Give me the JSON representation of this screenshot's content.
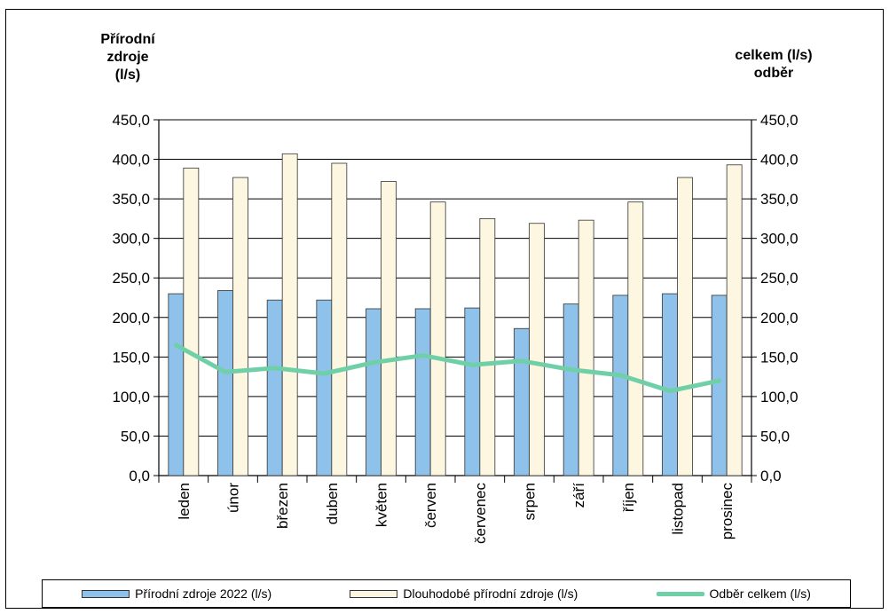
{
  "colors": {
    "primary_bar": "#8ec2ea",
    "secondary_bar": "#fdf6e0",
    "line": "#6fd0a8",
    "axis": "#000000"
  },
  "axes": {
    "left_title": [
      "Přírodní",
      "zdroje",
      "(l/s)"
    ],
    "right_title": [
      "celkem (l/s)",
      "odběr"
    ]
  },
  "legend": {
    "primary": "Přírodní zdroje 2022 (l/s)",
    "secondary": "Dlouhodobé přírodní zdroje (l/s)",
    "line": "Odběr celkem (l/s)"
  },
  "chart_data": {
    "type": "bar",
    "categories": [
      "leden",
      "únor",
      "březen",
      "duben",
      "květen",
      "červen",
      "červenec",
      "srpen",
      "září",
      "říjen",
      "listopad",
      "prosinec"
    ],
    "series": [
      {
        "name": "Přírodní zdroje 2022 (l/s)",
        "type": "bar",
        "values": [
          230,
          234,
          222,
          222,
          211,
          211,
          212,
          186,
          217,
          228,
          230,
          228
        ]
      },
      {
        "name": "Dlouhodobé přírodní zdroje (l/s)",
        "type": "bar",
        "values": [
          389,
          377,
          407,
          395,
          372,
          346,
          325,
          319,
          323,
          346,
          377,
          393
        ]
      },
      {
        "name": "Odběr celkem (l/s)",
        "type": "line",
        "axis": "right",
        "values": [
          165,
          131,
          136,
          129,
          143,
          152,
          140,
          145,
          134,
          127,
          107,
          120
        ]
      }
    ],
    "ylim": [
      0,
      450
    ],
    "y2lim": [
      0,
      450
    ],
    "yticks": [
      "0,0",
      "50,0",
      "100,0",
      "150,0",
      "200,0",
      "250,0",
      "300,0",
      "350,0",
      "400,0",
      "450,0"
    ],
    "legend_position": "bottom"
  }
}
